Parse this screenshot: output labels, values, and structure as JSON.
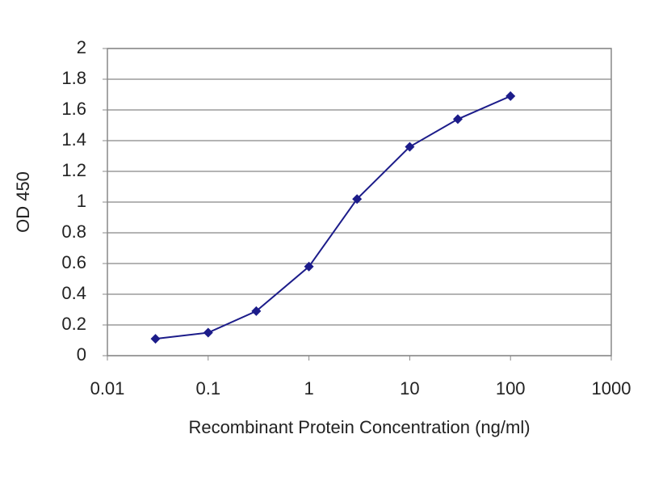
{
  "chart_data": {
    "type": "line",
    "x_label": "Recombinant Protein Concentration (ng/ml)",
    "y_label": "OD 450",
    "x": [
      0.03,
      0.1,
      0.3,
      1,
      3,
      10,
      30,
      100
    ],
    "series": [
      {
        "color": "#1c1c8a",
        "values": [
          0.11,
          0.15,
          0.29,
          0.58,
          1.02,
          1.36,
          1.54,
          1.69
        ]
      }
    ],
    "xscale": "log",
    "xlim": [
      0.01,
      1000
    ],
    "xticks": [
      0.01,
      0.1,
      1,
      10,
      100,
      1000
    ],
    "ylim": [
      0,
      2
    ],
    "yticks": [
      0,
      0.2,
      0.4,
      0.6,
      0.8,
      1,
      1.2,
      1.4,
      1.6,
      1.8,
      2
    ],
    "grid": true
  }
}
